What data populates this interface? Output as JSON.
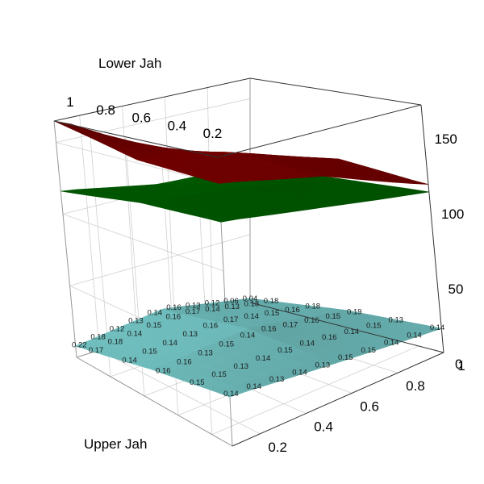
{
  "chart_data": {
    "type": "surface3d",
    "title": "",
    "axes": {
      "x_title": "Upper Jah",
      "y_title": "Lower Jah",
      "x_ticks": [
        "0.2",
        "0.4",
        "0.6",
        "0.8",
        "1"
      ],
      "y_ticks": [
        "0.2",
        "0.4",
        "0.6",
        "0.8",
        "1"
      ],
      "z_ticks": [
        "0",
        "50",
        "100",
        "150"
      ],
      "x_range": [
        0.08,
        1.0
      ],
      "y_range": [
        0.08,
        1.0
      ],
      "z_range": [
        0,
        165
      ]
    },
    "grid": true,
    "surfaces": [
      {
        "color": "#8b0000",
        "x": [
          0.1,
          0.55,
          1.0
        ],
        "y": [
          0.1,
          0.55,
          1.0
        ],
        "z": [
          [
            150,
            137,
            112
          ],
          [
            152,
            140,
            118
          ],
          [
            165,
            128,
            108
          ]
        ]
      },
      {
        "color": "#006400",
        "x": [
          0.1,
          0.55,
          1.0
        ],
        "y": [
          0.1,
          0.55,
          1.0
        ],
        "z": [
          [
            128,
            118,
            107
          ],
          [
            125,
            117,
            104
          ],
          [
            116,
            104,
            101
          ]
        ]
      },
      {
        "color": "#79cdcd",
        "x": [
          0.1,
          0.55,
          1.0
        ],
        "y": [
          0.1,
          0.55,
          1.0
        ],
        "z": [
          [
            28,
            22,
            16
          ],
          [
            20,
            24,
            12
          ],
          [
            8,
            15,
            3
          ]
        ]
      }
    ],
    "cell_labels": {
      "x": [
        0.1,
        0.2,
        0.3,
        0.4,
        0.5,
        0.6,
        0.7,
        0.8,
        0.9,
        1.0
      ],
      "y": [
        0.1,
        0.3,
        0.5,
        0.7,
        0.9,
        1.0
      ],
      "values": [
        [
          "0.14",
          "0.14",
          "0.13",
          "0.14",
          "0.13",
          "0.15",
          "0.15",
          "0.14",
          "0.14",
          "0.14"
        ],
        [
          "0.15",
          "0.15",
          "0.13",
          "0.14",
          "0.15",
          "0.14",
          "0.16",
          "0.14",
          "0.15",
          "0.13"
        ],
        [
          "0.16",
          "0.16",
          "0.13",
          "0.15",
          "0.14",
          "0.16",
          "0.17",
          "0.16",
          "0.15",
          "0.19"
        ],
        [
          "0.14",
          "0.15",
          "0.14",
          "0.13",
          "0.16",
          "0.17",
          "0.14",
          "0.15",
          "0.16",
          "0.18"
        ],
        [
          "0.17",
          "0.18",
          "0.14",
          "0.15",
          "0.16",
          "0.17",
          "0.14",
          "0.13",
          "0.18",
          "0.18"
        ],
        [
          "0.22",
          "0.18",
          "0.12",
          "0.13",
          "0.14",
          "0.16",
          "0.13",
          "0.12",
          "0.06",
          "0.04"
        ]
      ]
    }
  }
}
